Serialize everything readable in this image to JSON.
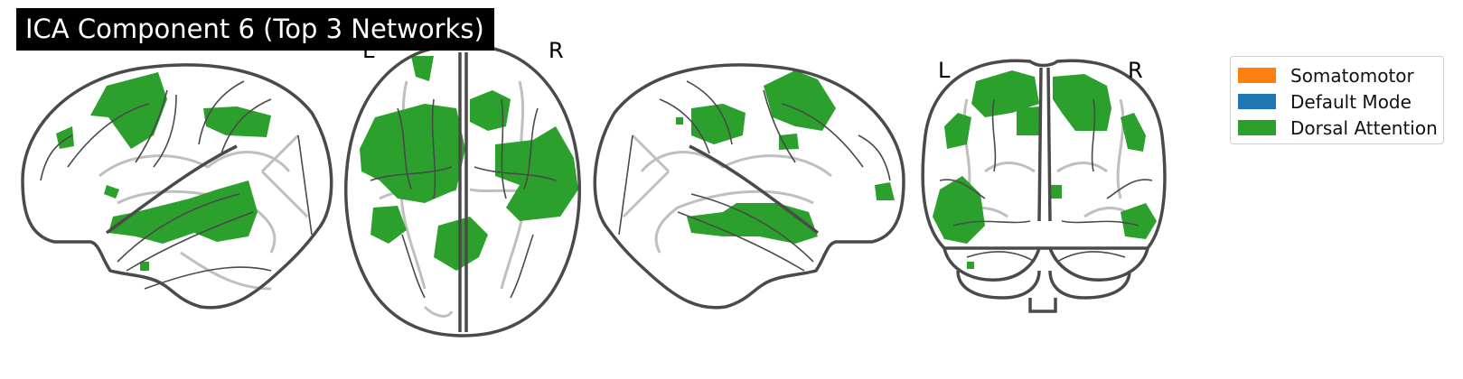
{
  "figure": {
    "title": "ICA Component 6 (Top 3 Networks)",
    "orientation_labels": {
      "left": "L",
      "right": "R"
    },
    "views": [
      "sagittal-left",
      "axial",
      "sagittal-right",
      "coronal"
    ],
    "overlay_color": "#2ca02c",
    "outline_color": "#4a4a4a",
    "sulci_color": "#bfbfbf"
  },
  "legend": {
    "items": [
      {
        "label": "Somatomotor",
        "color": "#ff7f0e"
      },
      {
        "label": "Default Mode",
        "color": "#1f77b4"
      },
      {
        "label": "Dorsal Attention",
        "color": "#2ca02c"
      }
    ]
  }
}
